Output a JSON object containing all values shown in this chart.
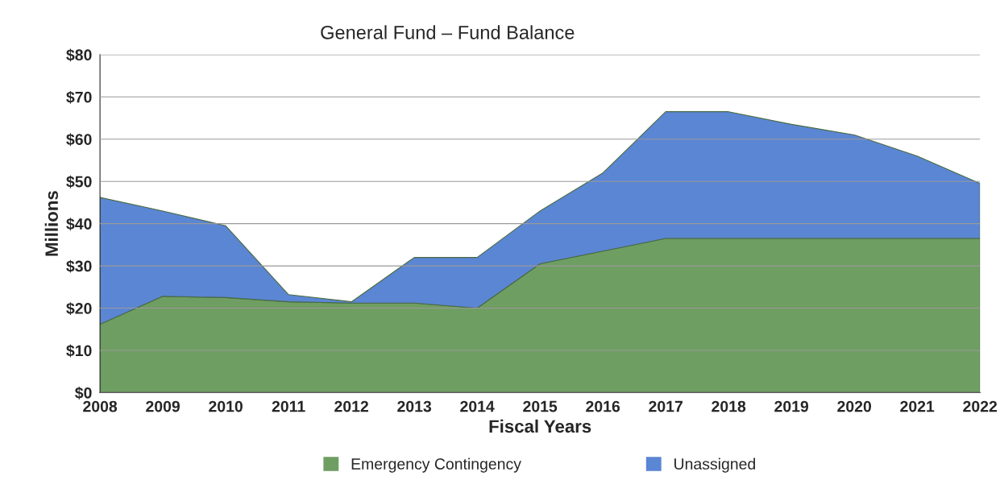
{
  "chart_data": {
    "type": "area",
    "title": "General Fund – Fund Balance",
    "xlabel": "Fiscal Years",
    "ylabel": "Millions",
    "stacked": true,
    "categories": [
      "2008",
      "2009",
      "2010",
      "2011",
      "2012",
      "2013",
      "2014",
      "2015",
      "2016",
      "2017",
      "2018",
      "2019",
      "2020",
      "2021",
      "2022"
    ],
    "series": [
      {
        "name": "Emergency Contingency",
        "color": "#6f9e62",
        "values": [
          16.2,
          22.8,
          22.5,
          21.5,
          21.2,
          21.2,
          20,
          30.5,
          33.5,
          36.5,
          36.5,
          36.5,
          36.5,
          36.5,
          36.5
        ]
      },
      {
        "name": "Unassigned",
        "color": "#5b86d4",
        "values": [
          30,
          20.2,
          17,
          1.7,
          0.3,
          10.8,
          12,
          12.5,
          18.5,
          30,
          30,
          27,
          24.5,
          19.5,
          13
        ]
      }
    ],
    "ylim": [
      0,
      80
    ],
    "yticks": [
      {
        "value": 0,
        "label": "$0"
      },
      {
        "value": 10,
        "label": "$10"
      },
      {
        "value": 20,
        "label": "$20"
      },
      {
        "value": 30,
        "label": "$30"
      },
      {
        "value": 40,
        "label": "$40"
      },
      {
        "value": 50,
        "label": "$50"
      },
      {
        "value": 60,
        "label": "$60"
      },
      {
        "value": 70,
        "label": "$70"
      },
      {
        "value": 80,
        "label": "$80"
      }
    ],
    "grid": "y",
    "legend": "bottom"
  }
}
